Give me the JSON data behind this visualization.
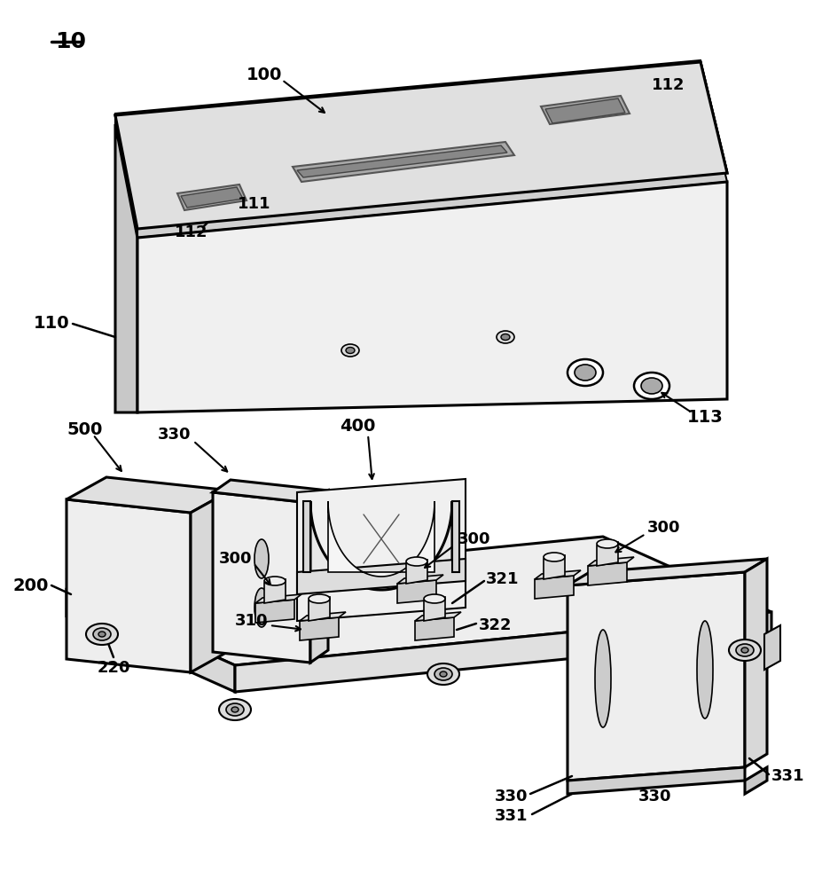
{
  "background_color": "#ffffff",
  "line_color": "#000000",
  "lw": 1.8,
  "blw": 2.2,
  "fs": 13
}
